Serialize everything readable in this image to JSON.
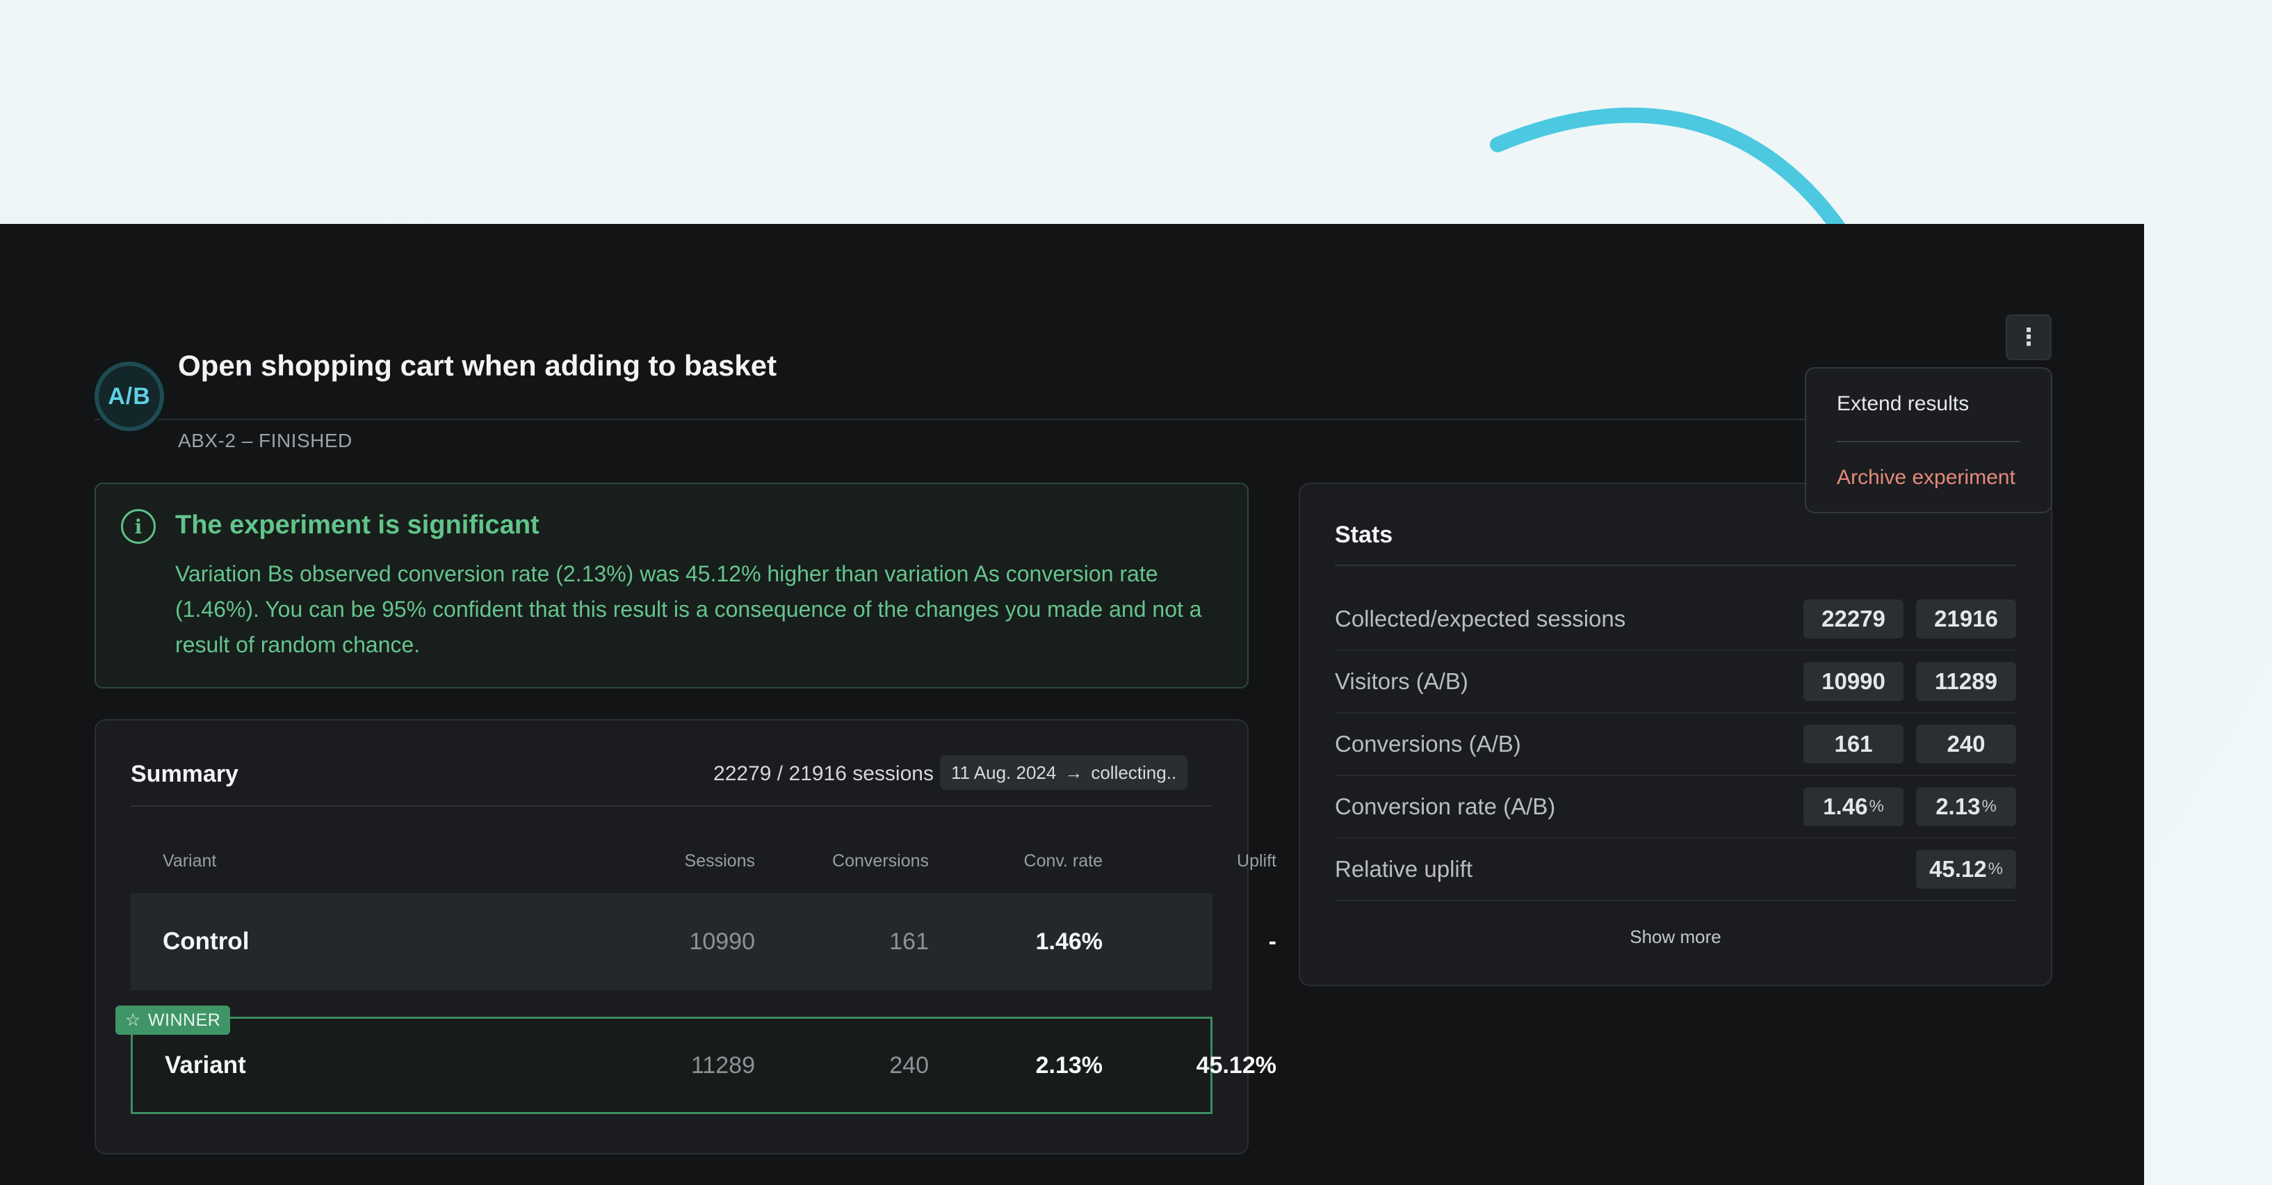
{
  "experiment": {
    "badge": "A/B",
    "title": "Open shopping cart when adding to basket",
    "subtitle": "ABX-2 – FINISHED"
  },
  "menu": {
    "kebab": "⋮",
    "extend": "Extend results",
    "archive": "Archive experiment"
  },
  "alert": {
    "icon": "i",
    "title": "The experiment is significant",
    "body": "Variation Bs observed conversion rate (2.13%) was 45.12% higher than variation As conversion rate (1.46%). You can be 95% confident that this result is a consequence of the changes you made and not a result of random chance."
  },
  "summary": {
    "title": "Summary",
    "sessions": "22279 / 21916 sessions (100%)",
    "date_start": "11 Aug. 2024",
    "date_arrow": "→",
    "date_end": "collecting..",
    "headers": {
      "variant": "Variant",
      "sessions": "Sessions",
      "conversions": "Conversions",
      "conv_rate": "Conv. rate",
      "uplift": "Uplift"
    },
    "winner_label": "WINNER",
    "winner_icon": "☆",
    "rows": [
      {
        "name": "Control",
        "sessions": "10990",
        "conversions": "161",
        "rate": "1.46%",
        "uplift": "-"
      },
      {
        "name": "Variant",
        "sessions": "11289",
        "conversions": "240",
        "rate": "2.13%",
        "uplift": "45.12%"
      }
    ]
  },
  "stats": {
    "title": "Stats",
    "rows": [
      {
        "label": "Collected/expected sessions",
        "a": "22279",
        "b": "21916"
      },
      {
        "label": "Visitors (A/B)",
        "a": "10990",
        "b": "11289"
      },
      {
        "label": "Conversions (A/B)",
        "a": "161",
        "b": "240"
      },
      {
        "label": "Conversion rate (A/B)",
        "a": "1.46",
        "b": "2.13",
        "unit": "%"
      },
      {
        "label": "Relative uplift",
        "b": "45.12",
        "unit": "%"
      }
    ],
    "show_more": "Show more"
  },
  "colors": {
    "accent_arrow": "#4cc8e0",
    "success": "#62c48a",
    "danger": "#e58a7a",
    "panel_bg": "#131416"
  }
}
